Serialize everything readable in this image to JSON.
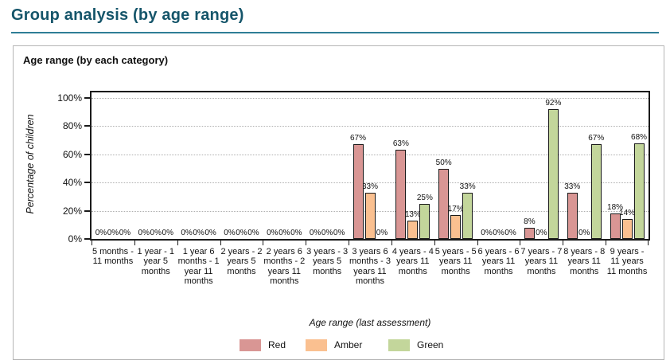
{
  "page": {
    "title": "Group analysis (by age range)"
  },
  "chart_data": {
    "type": "bar",
    "title": "Age range (by each category)",
    "xlabel": "Age range (last assessment)",
    "ylabel": "Percentage of children",
    "ylim": [
      0,
      100
    ],
    "ytick_percents": [
      0,
      20,
      40,
      60,
      80,
      100
    ],
    "ytick_labels": [
      "0%",
      "20%",
      "40%",
      "60%",
      "80%",
      "100%"
    ],
    "grid": "dotted-horizontal",
    "legend_position": "bottom",
    "categories": [
      "5 months - 11 months",
      "1 year - 1 year 5 months",
      "1 year 6 months - 1 year 11 months",
      "2 years - 2 years 5 months",
      "2 years 6 months - 2 years 11 months",
      "3 years - 3 years 5 months",
      "3 years 6 months - 3 years 11 months",
      "4 years - 4 years 11 months",
      "5 years - 5 years 11 months",
      "6 years - 6 years 11 months",
      "7 years - 7 years 11 months",
      "8 years - 8 years 11 months",
      "9 years - 11 years 11 months"
    ],
    "series": [
      {
        "name": "Red",
        "color": "#D99694",
        "values": [
          0,
          0,
          0,
          0,
          0,
          0,
          67,
          63,
          50,
          0,
          8,
          33,
          18
        ]
      },
      {
        "name": "Amber",
        "color": "#FAC090",
        "values": [
          0,
          0,
          0,
          0,
          0,
          0,
          33,
          13,
          17,
          0,
          0,
          0,
          14
        ]
      },
      {
        "name": "Green",
        "color": "#C3D69B",
        "values": [
          0,
          0,
          0,
          0,
          0,
          0,
          0,
          25,
          33,
          0,
          92,
          67,
          68
        ]
      }
    ]
  },
  "colors": {
    "title_text": "#15556A",
    "title_underline": "#2E7E96",
    "panel_border": "#B5B5B5",
    "axis": "#1A1A1A",
    "gridline": "#AFAFAF"
  }
}
